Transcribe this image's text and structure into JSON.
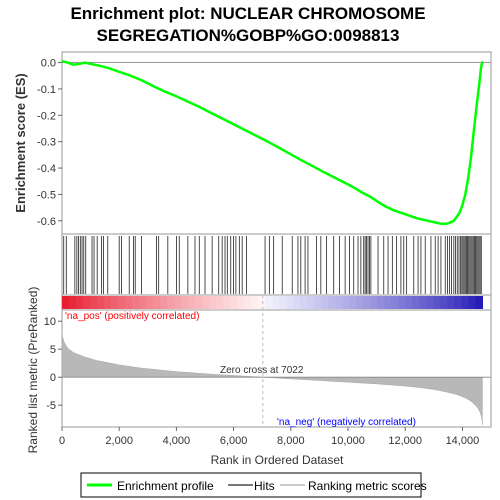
{
  "chart_data": {
    "type": "line",
    "title_lines": [
      "Enrichment plot: NUCLEAR CHROMOSOME",
      "SEGREGATION%GOBP%GO:0098813"
    ],
    "es_panel": {
      "ylabel": "Enrichment score (ES)",
      "ylim": [
        -0.65,
        0.04
      ],
      "yticks": [
        0.0,
        -0.1,
        -0.2,
        -0.3,
        -0.4,
        -0.5,
        -0.6
      ],
      "ytick_labels": [
        "0.0",
        "-0.1",
        "-0.2",
        "-0.3",
        "-0.4",
        "-0.5",
        "-0.6"
      ],
      "series": [
        {
          "color": "#00ff00",
          "x": [
            0,
            200,
            400,
            600,
            800,
            1000,
            1300,
            1600,
            2000,
            2400,
            2800,
            3200,
            3600,
            4000,
            4400,
            4800,
            5200,
            5600,
            6000,
            6400,
            6800,
            7200,
            7600,
            8000,
            8400,
            8800,
            9200,
            9600,
            10000,
            10300,
            10500,
            10800,
            11000,
            11300,
            11600,
            12000,
            12400,
            12800,
            13000,
            13300,
            13500,
            13700,
            13800,
            13900,
            14000,
            14100,
            14200,
            14300,
            14400,
            14500,
            14600,
            14650,
            14700
          ],
          "y": [
            0.005,
            0.0,
            -0.008,
            -0.005,
            0.0,
            -0.005,
            -0.012,
            -0.02,
            -0.035,
            -0.05,
            -0.068,
            -0.09,
            -0.11,
            -0.128,
            -0.148,
            -0.168,
            -0.19,
            -0.212,
            -0.234,
            -0.256,
            -0.278,
            -0.3,
            -0.324,
            -0.348,
            -0.372,
            -0.395,
            -0.418,
            -0.44,
            -0.462,
            -0.48,
            -0.493,
            -0.51,
            -0.525,
            -0.545,
            -0.56,
            -0.575,
            -0.59,
            -0.6,
            -0.605,
            -0.612,
            -0.61,
            -0.6,
            -0.585,
            -0.57,
            -0.54,
            -0.5,
            -0.44,
            -0.36,
            -0.26,
            -0.16,
            -0.07,
            -0.02,
            0.005
          ]
        }
      ]
    },
    "hits": {
      "positions": [
        60,
        150,
        450,
        520,
        580,
        640,
        700,
        760,
        830,
        1050,
        1120,
        1230,
        1380,
        1450,
        1600,
        2000,
        2080,
        2350,
        2500,
        2560,
        2780,
        3300,
        3380,
        3700,
        4000,
        4100,
        4400,
        4650,
        4800,
        5000,
        5250,
        5480,
        5600,
        5700,
        5780,
        5900,
        6000,
        6080,
        6200,
        6300,
        6450,
        7100,
        7250,
        7400,
        7700,
        8050,
        8250,
        8350,
        8500,
        8600,
        8900,
        9050,
        9250,
        9500,
        9700,
        9900,
        10050,
        10200,
        10350,
        10450,
        10550,
        10600,
        10650,
        10700,
        10750,
        10800,
        11050,
        11250,
        11400,
        11550,
        11700,
        11850,
        11950,
        12050,
        12300,
        12450,
        12550,
        12700,
        12900,
        13050,
        13150,
        13250,
        13400,
        13480,
        13550,
        13620,
        13700,
        13760,
        13820,
        13880,
        13930,
        13980,
        14020,
        14060,
        14100,
        14140,
        14180,
        14220,
        14260,
        14300,
        14340,
        14380,
        14420,
        14460,
        14500,
        14540,
        14580,
        14620,
        14660
      ]
    },
    "ranked_panel": {
      "ylabel": "Ranked list metric (PreRanked)",
      "ylim": [
        -8.9,
        12
      ],
      "yticks": [
        10,
        5,
        0,
        -5
      ],
      "ytick_labels": [
        "10",
        "5",
        "0",
        "-5"
      ],
      "metric_x": [
        0,
        20,
        80,
        200,
        400,
        800,
        1200,
        1600,
        2000,
        2400,
        2800,
        3200,
        3600,
        4000,
        4400,
        4800,
        5200,
        5600,
        6000,
        6500,
        7022,
        7500,
        8000,
        8500,
        9000,
        9500,
        10000,
        10500,
        11000,
        11500,
        12000,
        12500,
        13000,
        13400,
        13800,
        14100,
        14300,
        14450,
        14550,
        14620,
        14660,
        14690,
        14700
      ],
      "metric_y": [
        8.3,
        7.2,
        6.2,
        5.2,
        4.4,
        3.6,
        3.0,
        2.6,
        2.2,
        1.9,
        1.6,
        1.4,
        1.2,
        1.0,
        0.85,
        0.7,
        0.55,
        0.4,
        0.3,
        0.15,
        0.0,
        -0.15,
        -0.3,
        -0.45,
        -0.6,
        -0.75,
        -0.9,
        -1.05,
        -1.2,
        -1.4,
        -1.6,
        -1.85,
        -2.2,
        -2.6,
        -3.1,
        -3.7,
        -4.3,
        -5.0,
        -5.6,
        -6.3,
        -7.0,
        -7.8,
        -8.5
      ],
      "zero_cross": 7022,
      "zero_cross_label": "Zero cross at 7022",
      "pos_label": "'na_pos' (positively correlated)",
      "neg_label": "'na_neg' (negatively correlated)",
      "pos_label_color": "#ff0000",
      "neg_label_color": "#0000ff"
    },
    "x_axis": {
      "xlabel": "Rank in Ordered Dataset",
      "xlim": [
        0,
        15000
      ],
      "xticks": [
        0,
        2000,
        4000,
        6000,
        8000,
        10000,
        12000,
        14000
      ],
      "xtick_labels": [
        "0",
        "2,000",
        "4,000",
        "6,000",
        "8,000",
        "10,000",
        "12,000",
        "14,000"
      ],
      "n_genes": 14700
    },
    "legend": {
      "placement": "bottom",
      "items": [
        {
          "label": "Enrichment profile",
          "color": "#00ff00",
          "kind": "line"
        },
        {
          "label": "Hits",
          "color": "#777777",
          "kind": "line"
        },
        {
          "label": "Ranking metric scores",
          "color": "#cccccc",
          "kind": "line"
        }
      ]
    }
  }
}
